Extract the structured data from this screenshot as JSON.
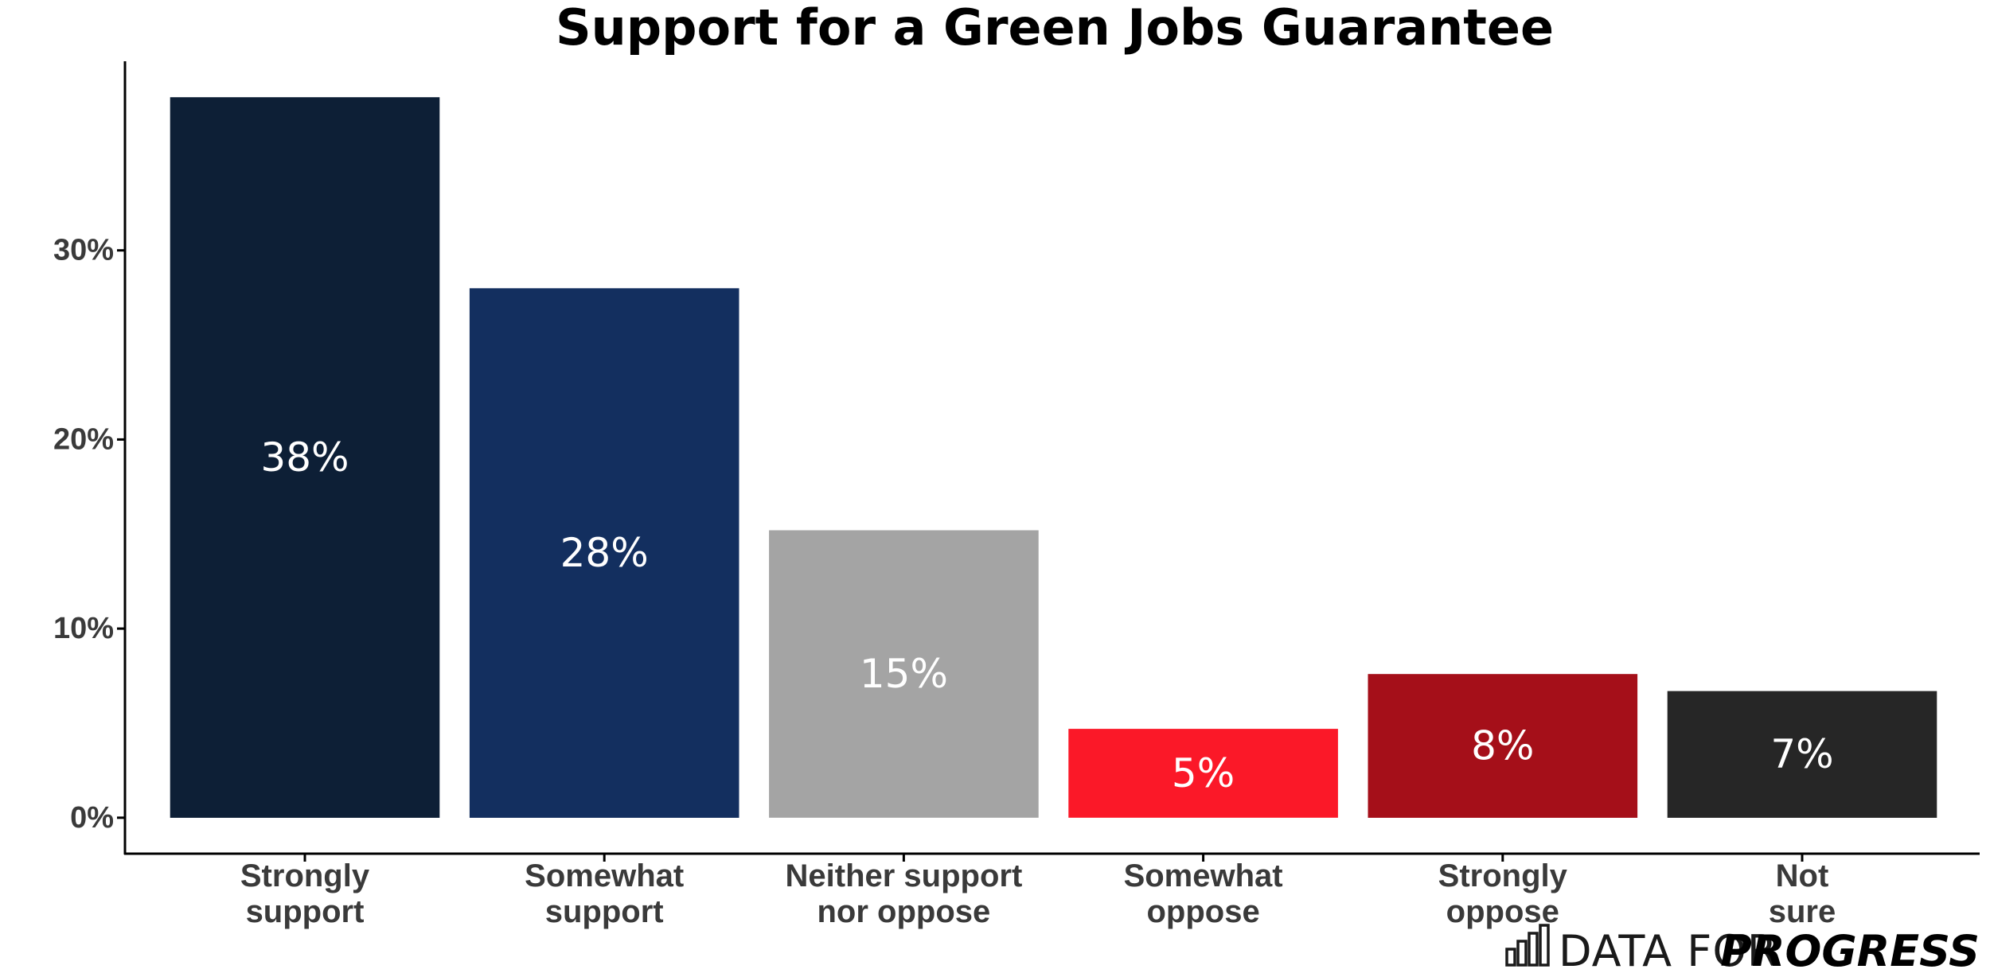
{
  "chart_data": {
    "type": "bar",
    "title": "Support for a Green Jobs Guarantee",
    "xlabel": "",
    "ylabel": "",
    "categories": [
      [
        "Strongly",
        "support"
      ],
      [
        "Somewhat",
        "support"
      ],
      [
        "Neither support",
        "nor oppose"
      ],
      [
        "Somewhat",
        "oppose"
      ],
      [
        "Strongly",
        "oppose"
      ],
      [
        "Not",
        "sure"
      ]
    ],
    "values": [
      38,
      28,
      15,
      5,
      8,
      7
    ],
    "bar_heights": [
      38.1,
      28.0,
      15.2,
      4.7,
      7.6,
      6.7
    ],
    "data_labels": [
      "38%",
      "28%",
      "15%",
      "5%",
      "8%",
      "7%"
    ],
    "colors": [
      "#0d1f36",
      "#132f5f",
      "#a4a4a4",
      "#fb1828",
      "#a50f19",
      "#262626"
    ],
    "yticks": [
      0,
      10,
      20,
      30
    ],
    "ytick_labels": [
      "0%",
      "10%",
      "20%",
      "30%"
    ],
    "ylim": [
      -1.9,
      40
    ],
    "grid": false,
    "legend": "none"
  },
  "branding": {
    "left_text": "DATA FOR",
    "right_text": "PROGRESS",
    "icon": "bar-chart-icon"
  },
  "colors": {
    "axis": "#000000",
    "tick_text": "#3a3a3a",
    "label_text": "#ffffff"
  }
}
